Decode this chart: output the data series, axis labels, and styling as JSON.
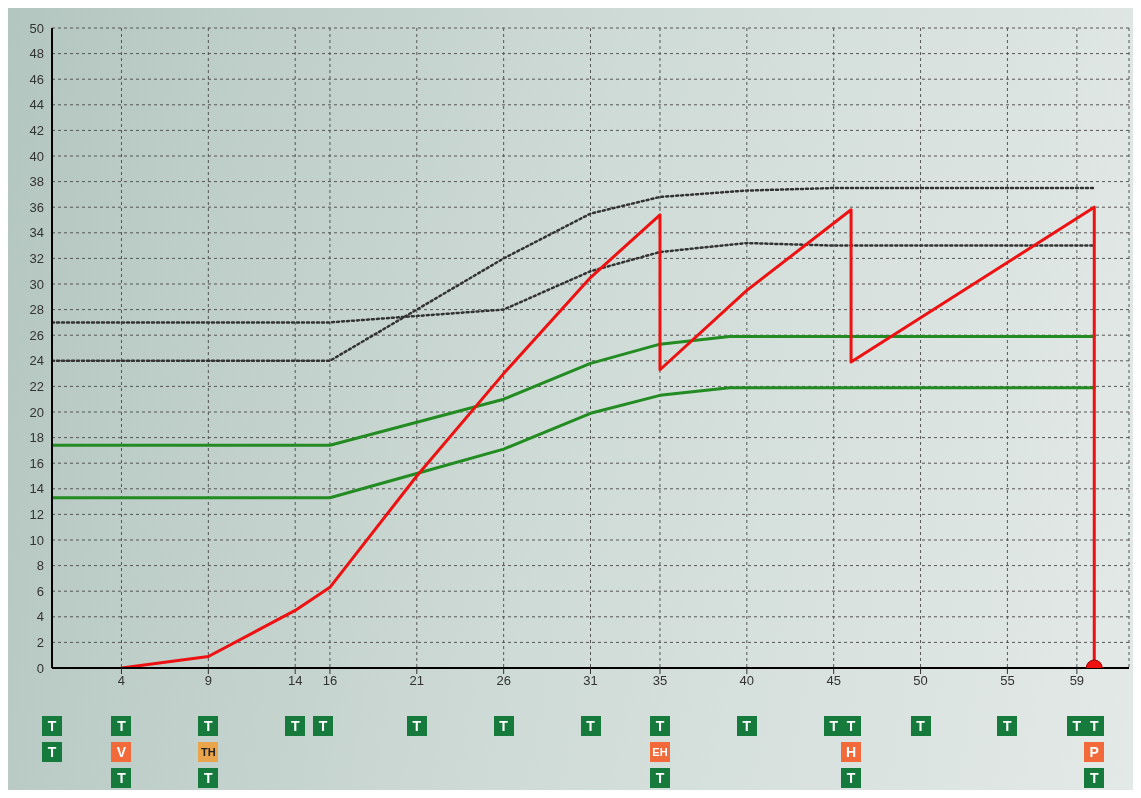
{
  "chart_data": {
    "type": "line",
    "xlim": [
      0,
      62
    ],
    "xticks": [
      4,
      9,
      14,
      16,
      21,
      26,
      31,
      35,
      40,
      45,
      50,
      55,
      59
    ],
    "ylim": [
      0,
      50
    ],
    "yticks": [
      0,
      2,
      4,
      6,
      8,
      10,
      12,
      14,
      16,
      18,
      20,
      22,
      24,
      26,
      28,
      30,
      32,
      34,
      36,
      38,
      40,
      42,
      44,
      46,
      48,
      50
    ],
    "grid": true,
    "marker": "none",
    "series": [
      {
        "color": "#333333",
        "line_style": "dotted",
        "x": [
          0,
          16,
          21,
          26,
          31,
          35,
          40,
          45,
          60
        ],
        "values": [
          24,
          24,
          28,
          32,
          35.5,
          36.8,
          37.3,
          37.5,
          37.5
        ]
      },
      {
        "color": "#333333",
        "line_style": "dotted",
        "x": [
          0,
          16,
          21,
          26,
          31,
          35,
          40,
          45,
          60
        ],
        "values": [
          27,
          27,
          27.5,
          28,
          31,
          32.5,
          33.2,
          33,
          33
        ]
      },
      {
        "color": "#228b22",
        "line_style": "solid",
        "x": [
          0,
          16,
          21,
          26,
          31,
          35,
          39,
          60
        ],
        "values": [
          17.4,
          17.4,
          19.2,
          21,
          23.8,
          25.3,
          25.9,
          25.9
        ]
      },
      {
        "color": "#228b22",
        "line_style": "solid",
        "x": [
          0,
          16,
          21,
          26,
          31,
          35,
          39,
          60
        ],
        "values": [
          13.3,
          13.3,
          15.2,
          17.1,
          19.9,
          21.3,
          21.9,
          21.9
        ]
      },
      {
        "color": "#ee1111",
        "line_style": "solid",
        "x": [
          4,
          9,
          14,
          16,
          21,
          26,
          31,
          35,
          35,
          40,
          46,
          46,
          60,
          60
        ],
        "values": [
          0,
          0.9,
          4.5,
          6.3,
          15,
          23,
          30.5,
          35.4,
          23.3,
          29.5,
          35.8,
          23.9,
          36,
          0
        ]
      },
      {
        "type": "scatter",
        "color": "#ee1111",
        "marker": "circle",
        "x": [
          60
        ],
        "values": [
          0
        ]
      }
    ],
    "annotations": [
      "T",
      "T",
      "T",
      "V",
      "T",
      "T",
      "TH",
      "T",
      "T",
      "T",
      "T",
      "T",
      "T",
      "T",
      "EH",
      "T",
      "T",
      "T",
      "T",
      "H",
      "T",
      "T",
      "T",
      "T",
      "T",
      "P",
      "T"
    ]
  }
}
